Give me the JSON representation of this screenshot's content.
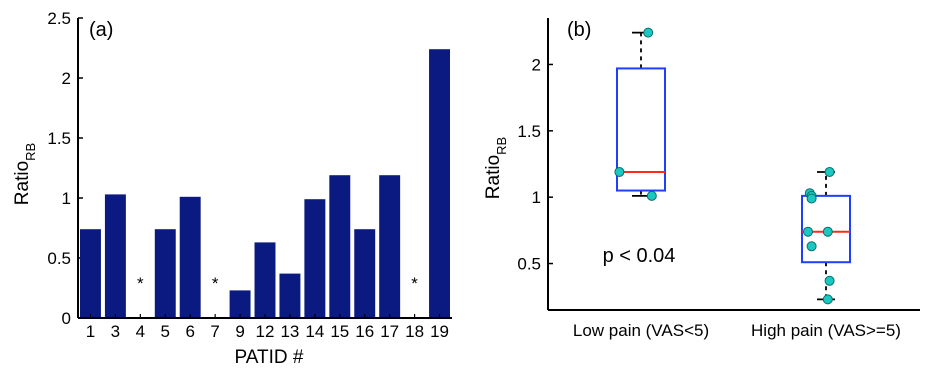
{
  "chart_data": [
    {
      "type": "bar",
      "panel_label": "(a)",
      "categories": [
        "1",
        "3",
        "4",
        "5",
        "6",
        "7",
        "9",
        "12",
        "13",
        "14",
        "15",
        "16",
        "17",
        "18",
        "19"
      ],
      "values": [
        0.74,
        1.03,
        0,
        0.74,
        1.01,
        0,
        0.23,
        0.63,
        0.37,
        0.99,
        1.19,
        0.74,
        1.19,
        0,
        2.24
      ],
      "missing_marker": "*",
      "missing": [
        "4",
        "7",
        "18"
      ],
      "xlabel": "PATID #",
      "ylabel_main": "Ratio",
      "ylabel_sub": "RB",
      "ylim": [
        0,
        2.5
      ],
      "yticks": [
        0,
        0.5,
        1,
        1.5,
        2,
        2.5
      ],
      "ytick_labels": [
        "0",
        "0.5",
        "1",
        "1.5",
        "2",
        "2.5"
      ],
      "bar_color": "#0b1a80"
    },
    {
      "type": "box",
      "panel_label": "(b)",
      "categories": [
        "Low pain (VAS<5)",
        "High pain (VAS>=5)"
      ],
      "groups": [
        {
          "name": "Low pain (VAS<5)",
          "whisker_low": 1.01,
          "q1": 1.05,
          "median": 1.19,
          "q3": 1.97,
          "whisker_high": 2.24,
          "points": [
            2.24,
            1.19,
            1.01
          ]
        },
        {
          "name": "High pain (VAS>=5)",
          "whisker_low": 0.23,
          "q1": 0.51,
          "median": 0.74,
          "q3": 1.01,
          "whisker_high": 1.19,
          "points": [
            1.19,
            1.03,
            1.01,
            0.99,
            0.74,
            0.74,
            0.63,
            0.37,
            0.23
          ]
        }
      ],
      "annotation": "p < 0.04",
      "ylabel_main": "Ratio",
      "ylabel_sub": "RB",
      "ylim": [
        0.15,
        2.35
      ],
      "yticks": [
        0.5,
        1,
        1.5,
        2
      ],
      "ytick_labels": [
        "0.5",
        "1",
        "1.5",
        "2"
      ],
      "box_color": "#1f3fff",
      "median_color": "#ff2a1a",
      "point_color": "#19c8c0"
    }
  ]
}
